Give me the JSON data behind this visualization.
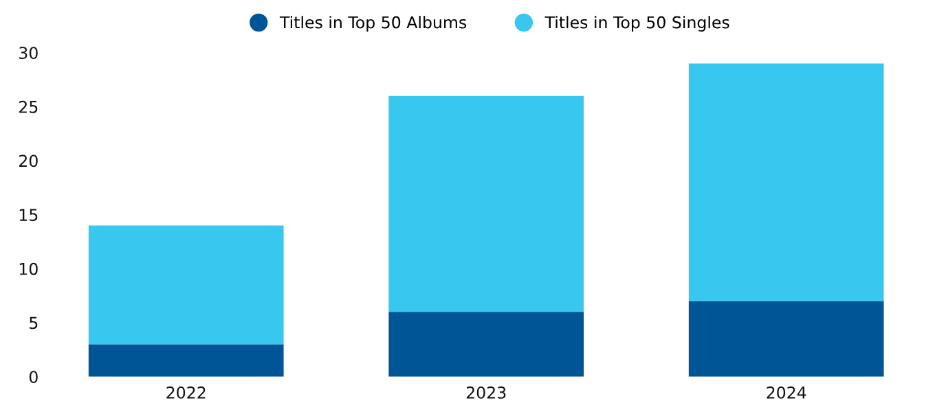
{
  "chart_data": {
    "type": "bar",
    "stacked": true,
    "categories": [
      "2022",
      "2023",
      "2024"
    ],
    "series": [
      {
        "name": "Titles in Top 50 Albums",
        "color": "#005596",
        "values": [
          3,
          6,
          7
        ]
      },
      {
        "name": "Titles in Top 50 Singles",
        "color": "#38c8ef",
        "values": [
          11,
          20,
          22
        ]
      }
    ],
    "ylim": [
      0,
      30
    ],
    "yticks": [
      0,
      5,
      10,
      15,
      20,
      25,
      30
    ],
    "grid": false,
    "legend": "top"
  }
}
